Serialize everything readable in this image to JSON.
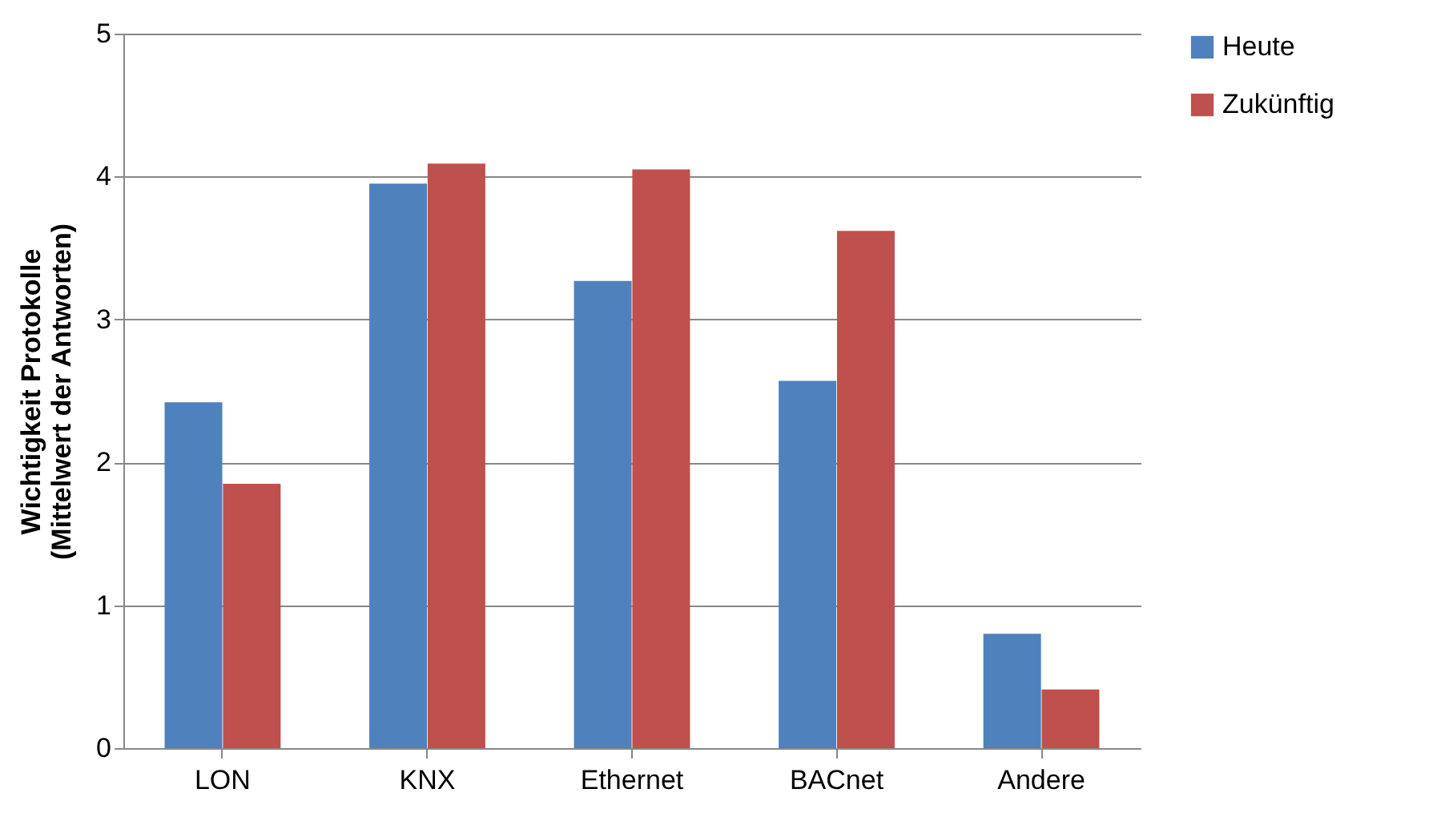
{
  "chart_data": {
    "type": "bar",
    "ylabel": "Wichtigkeit Protokolle\n(Mittelwert der Antworten)",
    "categories": [
      "LON",
      "KNX",
      "Ethernet",
      "BACnet",
      "Andere"
    ],
    "series": [
      {
        "name": "Heute",
        "color": "#4f81bd",
        "values": [
          2.42,
          3.95,
          3.27,
          2.57,
          0.8
        ]
      },
      {
        "name": "Zukünftig",
        "color": "#c0504d",
        "values": [
          1.85,
          4.09,
          4.05,
          3.62,
          0.41
        ]
      }
    ],
    "ylim": [
      0,
      5
    ],
    "yticks": [
      0,
      1,
      2,
      3,
      4,
      5
    ],
    "grid": "y",
    "legend": "right"
  }
}
